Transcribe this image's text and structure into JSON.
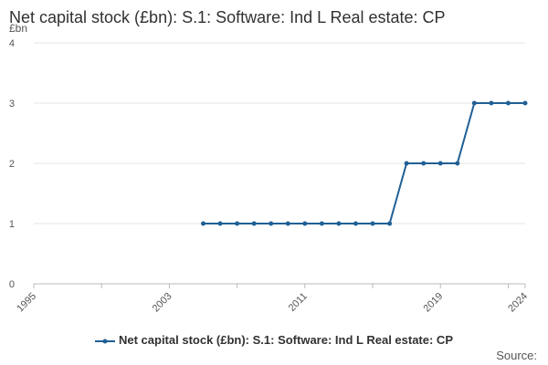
{
  "chart_data": {
    "type": "line",
    "title": "Net capital stock (£bn): S.1: Software: Ind L Real estate: CP",
    "ylabel": "£bn",
    "xlabel": "",
    "ylim": [
      0,
      4
    ],
    "xlim": [
      1995,
      2024
    ],
    "y_ticks": [
      "0",
      "1",
      "2",
      "3",
      "4"
    ],
    "x_tick_labels": [
      "1995",
      "2003",
      "2011",
      "2019",
      "2024"
    ],
    "grid": "horizontal",
    "legend_position": "bottom",
    "series": [
      {
        "name": "Net capital stock (£bn): S.1: Software: Ind L Real estate: CP",
        "color": "#206095",
        "x": [
          2005,
          2006,
          2007,
          2008,
          2009,
          2010,
          2011,
          2012,
          2013,
          2014,
          2015,
          2016,
          2017,
          2018,
          2019,
          2020,
          2021,
          2022,
          2023,
          2024
        ],
        "values": [
          1,
          1,
          1,
          1,
          1,
          1,
          1,
          1,
          1,
          1,
          1,
          1,
          2,
          2,
          2,
          2,
          3,
          3,
          3,
          3
        ]
      }
    ]
  },
  "source_label": "Source:"
}
